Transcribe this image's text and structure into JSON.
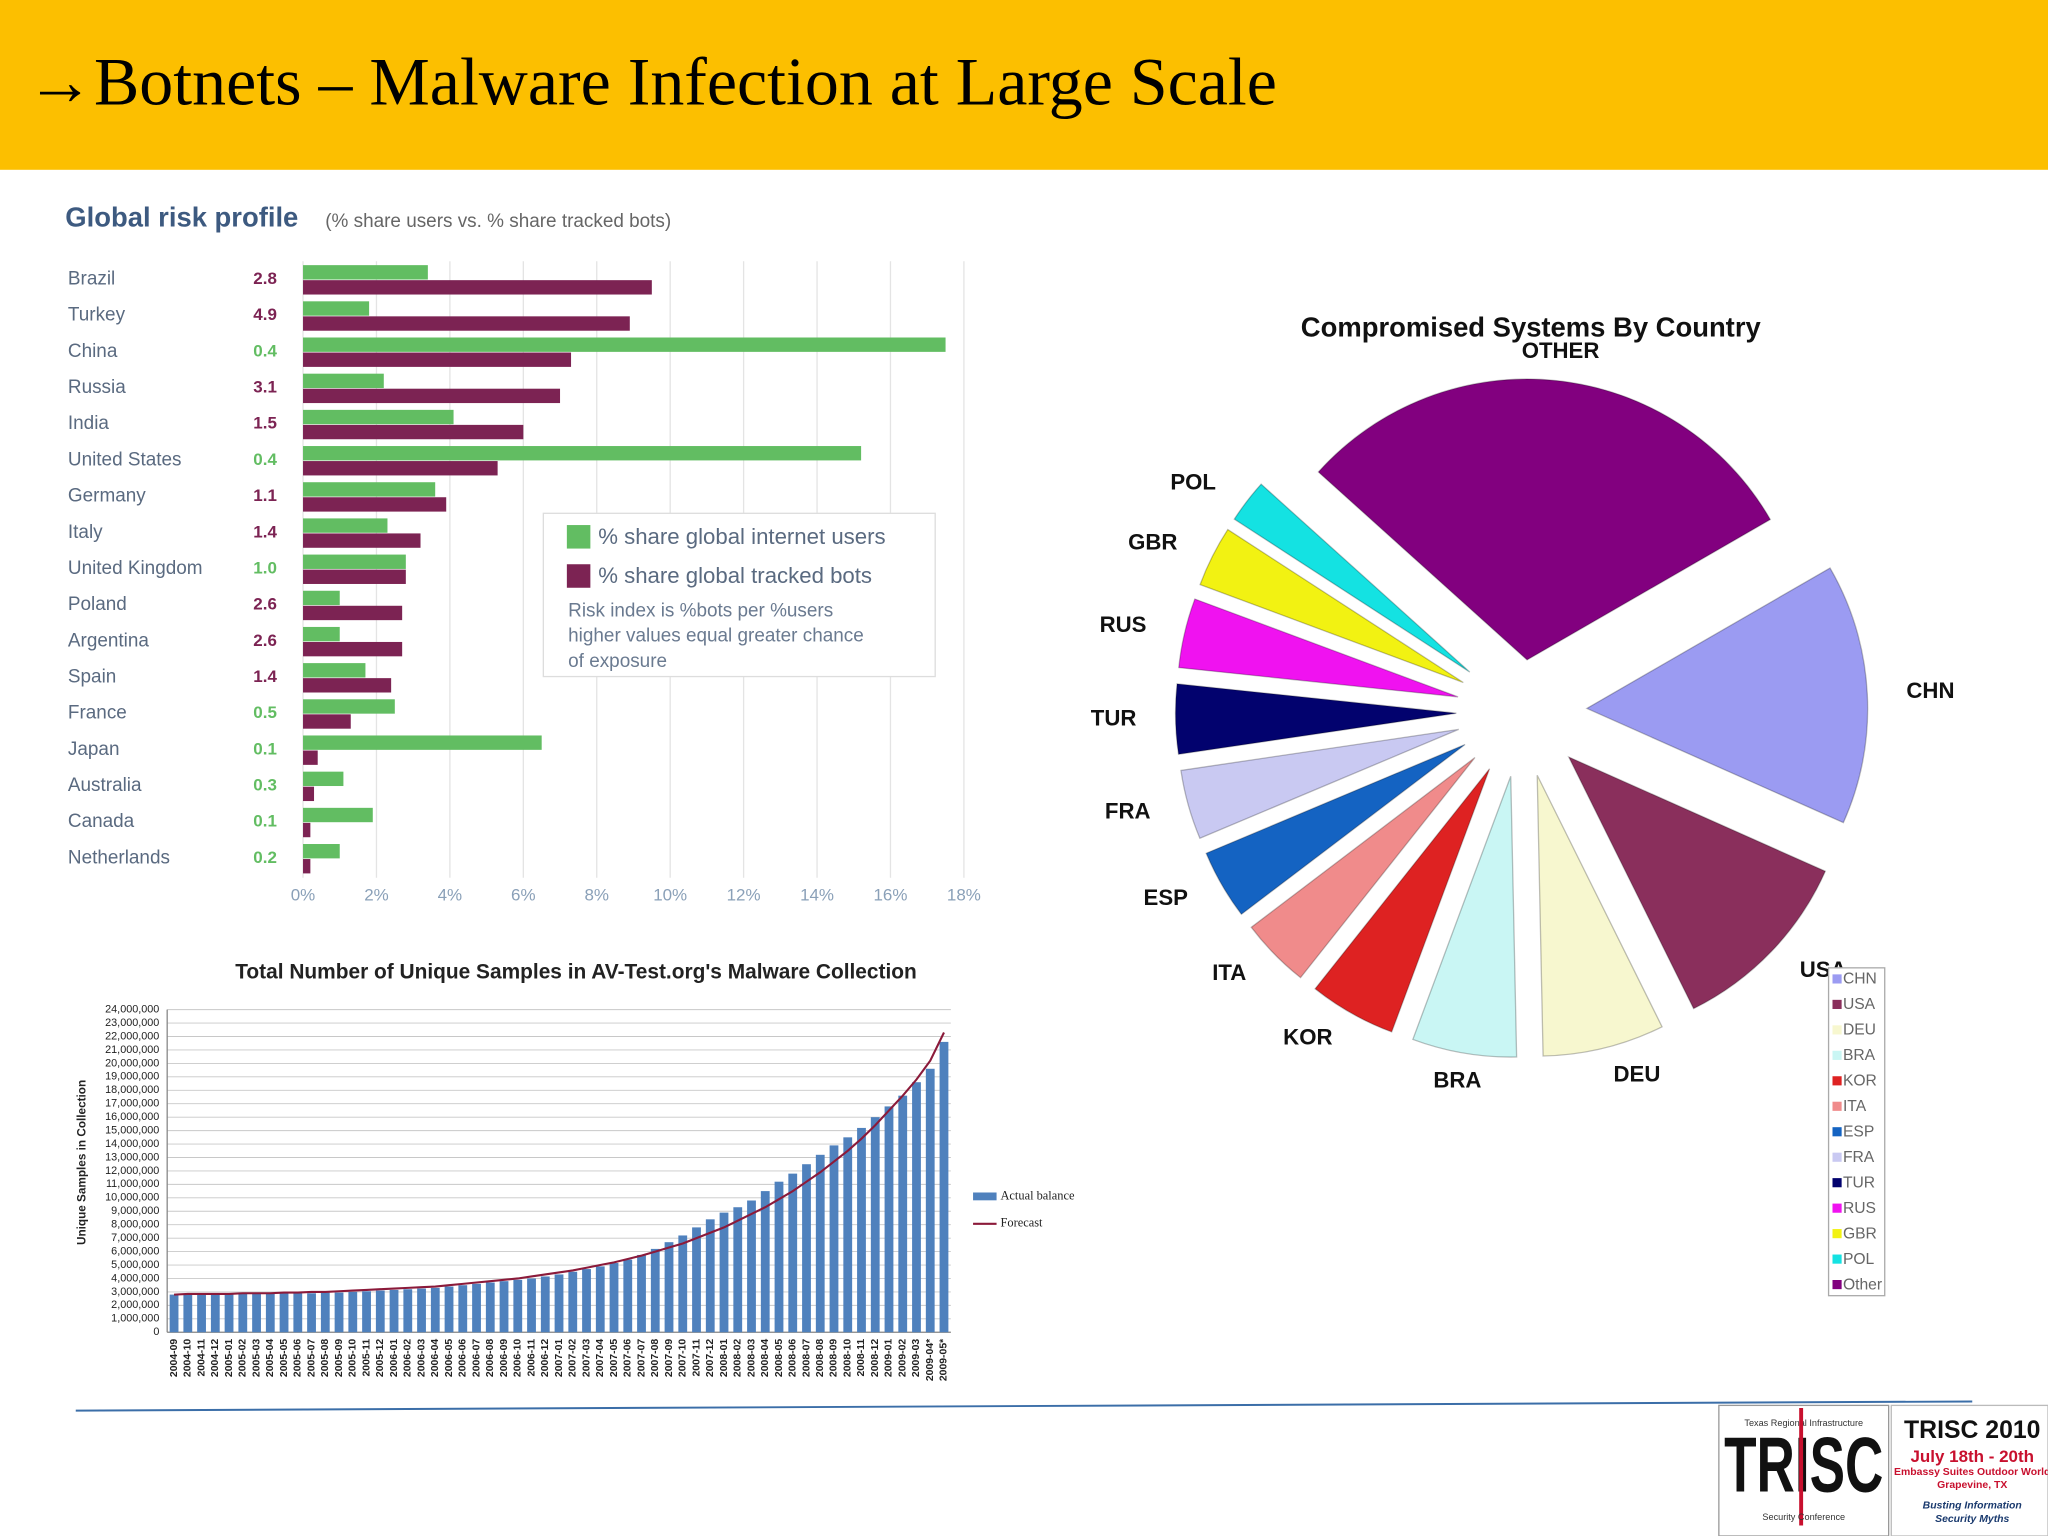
{
  "header": {
    "title": "→Botnets – Malware Infection at Large Scale"
  },
  "chart_data": [
    {
      "type": "hbar",
      "title": "Global risk profile",
      "subtitle": "(% share users vs. % share tracked bots)",
      "categories": [
        "Brazil",
        "Turkey",
        "China",
        "Russia",
        "India",
        "United States",
        "Germany",
        "Italy",
        "United Kingdom",
        "Poland",
        "Argentina",
        "Spain",
        "France",
        "Japan",
        "Australia",
        "Canada",
        "Netherlands"
      ],
      "risk_index": [
        "2.8",
        "4.9",
        "0.4",
        "3.1",
        "1.5",
        "0.4",
        "1.1",
        "1.4",
        "1.0",
        "2.6",
        "2.6",
        "1.4",
        "0.5",
        "0.1",
        "0.3",
        "0.1",
        "0.2"
      ],
      "series": [
        {
          "name": "% share global internet users",
          "color": "#62bd62",
          "values": [
            3.4,
            1.8,
            17.5,
            2.2,
            4.1,
            15.2,
            3.6,
            2.3,
            2.8,
            1.0,
            1.0,
            1.7,
            2.5,
            6.5,
            1.1,
            1.9,
            1.0
          ]
        },
        {
          "name": "% share global tracked bots",
          "color": "#7c2353",
          "values": [
            9.5,
            8.9,
            7.3,
            7.0,
            6.0,
            5.3,
            3.9,
            3.2,
            2.8,
            2.7,
            2.7,
            2.4,
            1.3,
            0.4,
            0.3,
            0.2,
            0.2
          ]
        }
      ],
      "xlim": [
        0,
        18
      ],
      "xticks": [
        {
          "value": 0,
          "label": "0%"
        },
        {
          "value": 2,
          "label": "2%"
        },
        {
          "value": 4,
          "label": "4%"
        },
        {
          "value": 6,
          "label": "6%"
        },
        {
          "value": 8,
          "label": "8%"
        },
        {
          "value": 10,
          "label": "10%"
        },
        {
          "value": 12,
          "label": "12%"
        },
        {
          "value": 14,
          "label": "14%"
        },
        {
          "value": 16,
          "label": "16%"
        },
        {
          "value": 18,
          "label": "18%"
        }
      ],
      "grid": true,
      "note": [
        "Risk index is %bots per %users",
        "higher values equal greater chance",
        "of exposure"
      ]
    },
    {
      "type": "bar_line",
      "title": "Total Number of Unique Samples in AV-Test.org's Malware Collection",
      "y_label": "Unique Samples in Collection",
      "categories": [
        "2004-09",
        "2004-10",
        "2004-11",
        "2004-12",
        "2005-01",
        "2005-02",
        "2005-03",
        "2005-04",
        "2005-05",
        "2005-06",
        "2005-07",
        "2005-08",
        "2005-09",
        "2005-10",
        "2005-11",
        "2005-12",
        "2006-01",
        "2006-02",
        "2006-03",
        "2006-04",
        "2006-05",
        "2006-06",
        "2006-07",
        "2006-08",
        "2006-09",
        "2006-10",
        "2006-11",
        "2006-12",
        "2007-01",
        "2007-02",
        "2007-03",
        "2007-04",
        "2007-05",
        "2007-06",
        "2007-07",
        "2007-08",
        "2007-09",
        "2007-10",
        "2007-11",
        "2007-12",
        "2008-01",
        "2008-02",
        "2008-03",
        "2008-04",
        "2008-05",
        "2008-06",
        "2008-07",
        "2008-08",
        "2008-09",
        "2008-10",
        "2008-11",
        "2008-12",
        "2009-01",
        "2009-02",
        "2009-03",
        "2009-04*",
        "2009-05*"
      ],
      "series": [
        {
          "name": "Actual balance",
          "type": "bar",
          "color": "#4f81bd",
          "values": [
            2800000,
            2850000,
            2850000,
            2850000,
            2850000,
            2850000,
            2900000,
            2900000,
            2900000,
            2900000,
            2900000,
            2950000,
            2950000,
            3000000,
            3050000,
            3100000,
            3150000,
            3200000,
            3250000,
            3300000,
            3400000,
            3500000,
            3600000,
            3700000,
            3800000,
            3900000,
            4000000,
            4150000,
            4300000,
            4500000,
            4700000,
            4900000,
            5150000,
            5400000,
            5750000,
            6200000,
            6700000,
            7200000,
            7800000,
            8400000,
            8900000,
            9300000,
            9800000,
            10500000,
            11200000,
            11800000,
            12500000,
            13200000,
            13900000,
            14500000,
            15200000,
            16000000,
            16800000,
            17600000,
            18600000,
            19600000,
            21600000
          ]
        },
        {
          "name": "Forecast",
          "type": "line",
          "color": "#8b1a3a",
          "values": [
            2800000,
            2850000,
            2850000,
            2850000,
            2850000,
            2900000,
            2900000,
            2900000,
            2950000,
            2950000,
            3000000,
            3000000,
            3050000,
            3100000,
            3150000,
            3200000,
            3250000,
            3300000,
            3350000,
            3400000,
            3500000,
            3600000,
            3700000,
            3800000,
            3900000,
            4000000,
            4150000,
            4300000,
            4450000,
            4600000,
            4800000,
            5000000,
            5200000,
            5450000,
            5700000,
            6000000,
            6300000,
            6600000,
            7000000,
            7400000,
            7800000,
            8300000,
            8800000,
            9300000,
            9900000,
            10500000,
            11200000,
            11900000,
            12700000,
            13500000,
            14400000,
            15400000,
            16500000,
            17600000,
            18800000,
            20200000,
            22300000
          ]
        }
      ],
      "ylim": [
        0,
        24000000
      ],
      "yticks": [
        0,
        {
          "value": 1000000,
          "label": "1,000,000"
        },
        {
          "value": 2000000,
          "label": "2,000,000"
        },
        {
          "value": 3000000,
          "label": "3,000,000"
        },
        {
          "value": 4000000,
          "label": "4,000,000"
        },
        {
          "value": 5000000,
          "label": "5,000,000"
        },
        {
          "value": 6000000,
          "label": "6,000,000"
        },
        {
          "value": 7000000,
          "label": "7,000,000"
        },
        {
          "value": 8000000,
          "label": "8,000,000"
        },
        {
          "value": 9000000,
          "label": "9,000,000"
        },
        {
          "value": 10000000,
          "label": "10,000,000"
        },
        {
          "value": 11000000,
          "label": "11,000,000"
        },
        {
          "value": 12000000,
          "label": "12,000,000"
        },
        {
          "value": 13000000,
          "label": "13,000,000"
        },
        {
          "value": 14000000,
          "label": "14,000,000"
        },
        {
          "value": 15000000,
          "label": "15,000,000"
        },
        {
          "value": 16000000,
          "label": "16,000,000"
        },
        {
          "value": 17000000,
          "label": "17,000,000"
        },
        {
          "value": 18000000,
          "label": "18,000,000"
        },
        {
          "value": 19000000,
          "label": "19,000,000"
        },
        {
          "value": 20000000,
          "label": "20,000,000"
        },
        {
          "value": 21000000,
          "label": "21,000,000"
        },
        {
          "value": 22000000,
          "label": "22,000,000"
        },
        {
          "value": 23000000,
          "label": "23,000,000"
        },
        {
          "value": 24000000,
          "label": "24,000,000"
        }
      ],
      "grid": true
    },
    {
      "type": "pie",
      "title": "Compromised Systems By Country",
      "categories": [
        "CHN",
        "USA",
        "DEU",
        "BRA",
        "KOR",
        "ITA",
        "ESP",
        "FRA",
        "TUR",
        "RUS",
        "GBR",
        "POL",
        "Other"
      ],
      "labels": [
        "CHN",
        "USA",
        "DEU",
        "BRA",
        "KOR",
        "ITA",
        "ESP",
        "FRA",
        "TUR",
        "RUS",
        "GBR",
        "POL",
        "OTHER"
      ],
      "values": [
        15,
        11,
        7,
        6,
        5,
        4,
        4,
        4,
        4,
        4,
        3.5,
        2.5,
        30
      ],
      "colors": [
        "#9b9bf2",
        "#8a2f5c",
        "#f7f7cf",
        "#c9f6f4",
        "#de2222",
        "#f08b8b",
        "#1463c2",
        "#c9c9f2",
        "#02026e",
        "#f012f0",
        "#f2f212",
        "#14e2e2",
        "#82007f"
      ],
      "legend": "right"
    }
  ],
  "footer": {
    "logo": "TRISC",
    "logo_top": "Texas Regional Infrastructure",
    "logo_bottom": "Security Conference",
    "event": "TRISC 2010",
    "dates": "July 18th - 20th",
    "venue": "Embassy Suites Outdoor World",
    "city": "Grapevine, TX",
    "tagline": [
      "Busting Information",
      "Security Myths"
    ]
  }
}
